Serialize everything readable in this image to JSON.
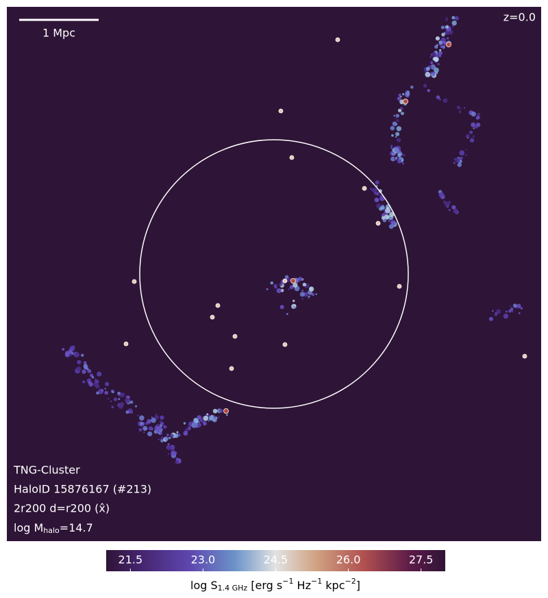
{
  "chart_data": {
    "type": "map",
    "scalebar_label": "1 Mpc",
    "redshift_label": "z=0.0",
    "annotations": [
      "TNG-Cluster",
      "HaloID 15876167 (#213)",
      "2r200 d=r200 (x̂)"
    ],
    "mass_label": [
      "log M",
      "halo",
      "=14.7"
    ],
    "colorbar": {
      "label": [
        "log S",
        "1.4 GHz",
        " [erg s",
        "−1",
        " Hz",
        "−1",
        " kpc",
        "−2",
        "]"
      ],
      "lim": [
        21,
        28
      ],
      "ticks": [
        21.5,
        {
          "value": 23,
          "label": "23.0"
        },
        24.5,
        {
          "value": 26,
          "label": "26.0"
        },
        27.5
      ]
    }
  }
}
